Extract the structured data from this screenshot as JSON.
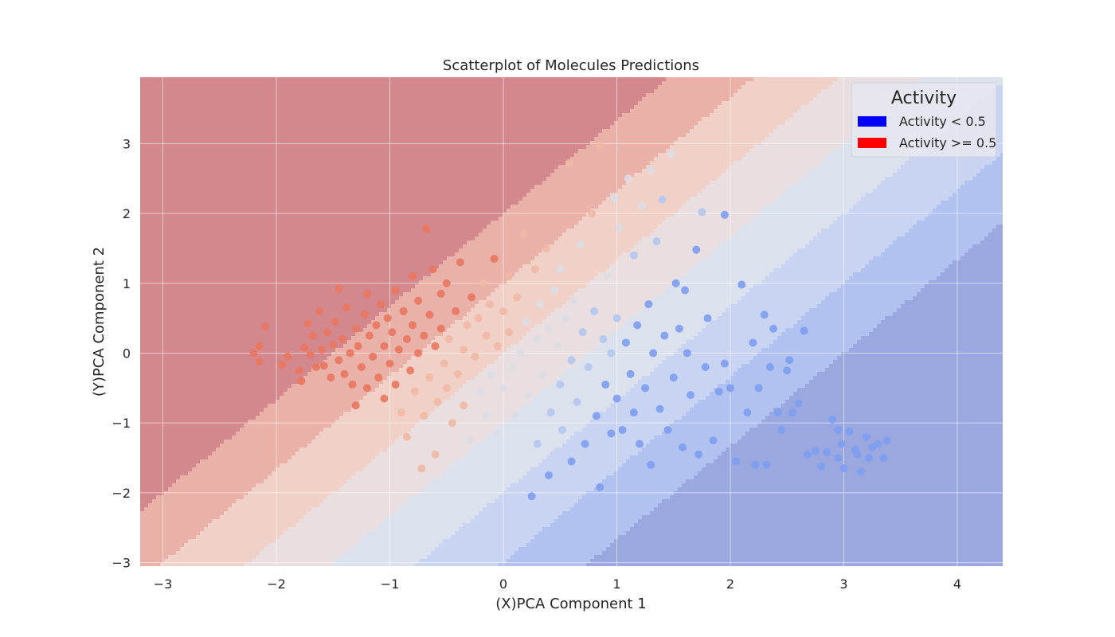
{
  "chart_data": {
    "type": "scatter",
    "title": "Scatterplot of Molecules Predictions",
    "xlabel": "(X)PCA Component 1",
    "ylabel": "(Y)PCA Component 2",
    "xlim": [
      -3.2,
      4.4
    ],
    "ylim": [
      -3.05,
      3.95
    ],
    "xticks": [
      -3,
      -2,
      -1,
      0,
      1,
      2,
      3,
      4
    ],
    "yticks": [
      -3,
      -2,
      -1,
      0,
      1,
      2,
      3
    ],
    "xtick_labels": [
      "−3",
      "−2",
      "−1",
      "0",
      "1",
      "2",
      "3",
      "4"
    ],
    "ytick_labels": [
      "−3",
      "−2",
      "−1",
      "0",
      "1",
      "2",
      "3"
    ],
    "grid": true,
    "background": "decision-contour",
    "contour_levels": [
      {
        "offset_max": -4.0,
        "color": "#d3888d"
      },
      {
        "offset_max": -2.5,
        "color": "#e9b1a7"
      },
      {
        "offset_max": -1.0,
        "color": "#f1d0c7"
      },
      {
        "offset_max": 0.5,
        "color": "#e9dfe0"
      },
      {
        "offset_max": 2.0,
        "color": "#dce1ee"
      },
      {
        "offset_max": 3.5,
        "color": "#c8d4f2"
      },
      {
        "offset_max": 5.0,
        "color": "#b1c2f0"
      },
      {
        "offset_max": 99,
        "color": "#9ba8e0"
      }
    ],
    "legend": {
      "title": "Activity",
      "placement": "top-right",
      "entries": [
        {
          "label": "Activity < 0.5",
          "color": "#0000ff"
        },
        {
          "label": "Activity >= 0.5",
          "color": "#ff0000"
        }
      ]
    },
    "point_colors": {
      "high_activity": "#e8775f",
      "mid_high": "#f0b8a4",
      "mid": "#dcdde3",
      "mid_low": "#b4c6f0",
      "low_activity": "#7d9df0"
    },
    "points": [
      [
        -2.2,
        0.0
      ],
      [
        -2.15,
        0.1
      ],
      [
        -2.15,
        -0.12
      ],
      [
        -2.1,
        0.38
      ],
      [
        -1.95,
        -0.17
      ],
      [
        -1.9,
        -0.05
      ],
      [
        -1.8,
        -0.25
      ],
      [
        -1.78,
        -0.4
      ],
      [
        -1.75,
        0.08
      ],
      [
        -1.72,
        0.42
      ],
      [
        -1.7,
        -0.02
      ],
      [
        -1.68,
        0.25
      ],
      [
        -1.65,
        -0.2
      ],
      [
        -1.62,
        0.6
      ],
      [
        -1.6,
        0.05
      ],
      [
        -1.58,
        -0.18
      ],
      [
        -1.55,
        0.3
      ],
      [
        -1.52,
        -0.35
      ],
      [
        -1.5,
        0.12
      ],
      [
        -1.48,
        0.45
      ],
      [
        -1.45,
        0.92
      ],
      [
        -1.45,
        -0.1
      ],
      [
        -1.42,
        0.2
      ],
      [
        -1.4,
        -0.3
      ],
      [
        -1.38,
        0.65
      ],
      [
        -1.35,
        0.0
      ],
      [
        -1.33,
        -0.45
      ],
      [
        -1.3,
        0.35
      ],
      [
        -1.3,
        -0.75
      ],
      [
        -1.28,
        0.1
      ],
      [
        -1.25,
        -0.2
      ],
      [
        -1.22,
        0.55
      ],
      [
        -1.2,
        0.85
      ],
      [
        -1.2,
        -0.5
      ],
      [
        -1.18,
        0.25
      ],
      [
        -1.15,
        -0.05
      ],
      [
        -1.12,
        0.4
      ],
      [
        -1.1,
        -0.35
      ],
      [
        -1.08,
        0.7
      ],
      [
        -1.05,
        0.1
      ],
      [
        -1.05,
        -0.65
      ],
      [
        -1.02,
        0.5
      ],
      [
        -1.0,
        -0.15
      ],
      [
        -0.98,
        0.3
      ],
      [
        -0.95,
        0.9
      ],
      [
        -0.95,
        -0.45
      ],
      [
        -0.92,
        0.05
      ],
      [
        -0.9,
        -0.85
      ],
      [
        -0.88,
        0.6
      ],
      [
        -0.85,
        0.2
      ],
      [
        -0.85,
        -1.2
      ],
      [
        -0.82,
        -0.25
      ],
      [
        -0.8,
        1.1
      ],
      [
        -0.8,
        0.4
      ],
      [
        -0.78,
        -0.55
      ],
      [
        -0.75,
        0.75
      ],
      [
        -0.75,
        0.0
      ],
      [
        -0.72,
        -1.65
      ],
      [
        -0.7,
        0.25
      ],
      [
        -0.7,
        -0.9
      ],
      [
        -0.68,
        1.78
      ],
      [
        -0.65,
        0.55
      ],
      [
        -0.65,
        -0.35
      ],
      [
        -0.62,
        1.2
      ],
      [
        -0.6,
        0.1
      ],
      [
        -0.6,
        -1.45
      ],
      [
        -0.58,
        -0.7
      ],
      [
        -0.55,
        0.85
      ],
      [
        -0.55,
        0.35
      ],
      [
        -0.52,
        -0.15
      ],
      [
        -0.5,
        1.0
      ],
      [
        -0.5,
        -0.5
      ],
      [
        -0.48,
        0.2
      ],
      [
        -0.45,
        -1.0
      ],
      [
        -0.42,
        0.6
      ],
      [
        -0.4,
        -0.3
      ],
      [
        -0.38,
        1.3
      ],
      [
        -0.35,
        0.05
      ],
      [
        -0.35,
        -0.75
      ],
      [
        -0.32,
        0.4
      ],
      [
        -0.3,
        -1.25
      ],
      [
        -0.28,
        0.8
      ],
      [
        -0.25,
        -0.05
      ],
      [
        -0.22,
        0.5
      ],
      [
        -0.2,
        -0.55
      ],
      [
        -0.18,
        1.0
      ],
      [
        -0.15,
        0.25
      ],
      [
        -0.15,
        -0.9
      ],
      [
        -0.12,
        0.7
      ],
      [
        -0.1,
        -0.3
      ],
      [
        -0.08,
        1.35
      ],
      [
        -0.05,
        0.1
      ],
      [
        -0.05,
        -1.15
      ],
      [
        0.0,
        0.6
      ],
      [
        0.0,
        -0.5
      ],
      [
        0.05,
        1.1
      ],
      [
        0.05,
        0.3
      ],
      [
        0.08,
        -0.2
      ],
      [
        0.1,
        -0.9
      ],
      [
        0.12,
        0.8
      ],
      [
        0.15,
        0.0
      ],
      [
        0.18,
        1.7
      ],
      [
        0.2,
        0.45
      ],
      [
        0.22,
        -0.6
      ],
      [
        0.25,
        -2.05
      ],
      [
        0.28,
        1.2
      ],
      [
        0.3,
        0.2
      ],
      [
        0.3,
        -1.3
      ],
      [
        0.32,
        0.7
      ],
      [
        0.35,
        -0.3
      ],
      [
        0.38,
        1.5
      ],
      [
        0.4,
        0.35
      ],
      [
        0.4,
        -1.75
      ],
      [
        0.42,
        -0.85
      ],
      [
        0.45,
        0.9
      ],
      [
        0.48,
        0.1
      ],
      [
        0.5,
        -0.45
      ],
      [
        0.5,
        1.2
      ],
      [
        0.52,
        -1.1
      ],
      [
        0.55,
        0.5
      ],
      [
        0.58,
        2.72
      ],
      [
        0.6,
        -0.1
      ],
      [
        0.6,
        -1.55
      ],
      [
        0.62,
        0.75
      ],
      [
        0.65,
        -0.7
      ],
      [
        0.68,
        1.55
      ],
      [
        0.7,
        0.3
      ],
      [
        0.72,
        -1.3
      ],
      [
        0.75,
        -0.2
      ],
      [
        0.78,
        2.0
      ],
      [
        0.8,
        0.6
      ],
      [
        0.82,
        -0.9
      ],
      [
        0.85,
        2.98
      ],
      [
        0.85,
        -1.92
      ],
      [
        0.88,
        0.2
      ],
      [
        0.9,
        -0.45
      ],
      [
        0.92,
        1.1
      ],
      [
        0.95,
        -1.15
      ],
      [
        0.95,
        0.0
      ],
      [
        0.98,
        2.22
      ],
      [
        1.0,
        0.5
      ],
      [
        1.0,
        -0.65
      ],
      [
        1.02,
        1.8
      ],
      [
        1.05,
        -1.1
      ],
      [
        1.08,
        0.15
      ],
      [
        1.1,
        2.5
      ],
      [
        1.12,
        -0.3
      ],
      [
        1.15,
        1.4
      ],
      [
        1.15,
        -0.85
      ],
      [
        1.18,
        0.4
      ],
      [
        1.2,
        -1.3
      ],
      [
        1.22,
        2.1
      ],
      [
        1.25,
        -0.5
      ],
      [
        1.28,
        0.7
      ],
      [
        1.3,
        -1.6
      ],
      [
        1.3,
        2.62
      ],
      [
        1.32,
        0.0
      ],
      [
        1.35,
        1.6
      ],
      [
        1.38,
        -0.8
      ],
      [
        1.4,
        2.2
      ],
      [
        1.42,
        0.25
      ],
      [
        1.45,
        -1.1
      ],
      [
        1.48,
        2.85
      ],
      [
        1.5,
        -0.35
      ],
      [
        1.52,
        1.0
      ],
      [
        1.55,
        0.35
      ],
      [
        1.58,
        -1.35
      ],
      [
        1.6,
        0.9
      ],
      [
        1.62,
        0.0
      ],
      [
        1.65,
        -0.6
      ],
      [
        1.7,
        1.48
      ],
      [
        1.72,
        -1.45
      ],
      [
        1.75,
        2.02
      ],
      [
        1.78,
        -0.2
      ],
      [
        1.8,
        0.5
      ],
      [
        1.85,
        -1.25
      ],
      [
        1.9,
        -0.55
      ],
      [
        1.95,
        1.98
      ],
      [
        1.95,
        -0.15
      ],
      [
        2.0,
        -0.5
      ],
      [
        2.05,
        -1.55
      ],
      [
        2.1,
        0.98
      ],
      [
        2.15,
        -0.85
      ],
      [
        2.2,
        0.15
      ],
      [
        2.22,
        -1.6
      ],
      [
        2.25,
        -0.5
      ],
      [
        2.3,
        0.55
      ],
      [
        2.32,
        -1.6
      ],
      [
        2.35,
        -0.2
      ],
      [
        2.38,
        0.35
      ],
      [
        2.42,
        -0.85
      ],
      [
        2.45,
        -1.1
      ],
      [
        2.5,
        -0.25
      ],
      [
        2.52,
        -0.1
      ],
      [
        2.55,
        -0.85
      ],
      [
        2.6,
        -0.72
      ],
      [
        2.65,
        0.32
      ],
      [
        2.68,
        -1.45
      ],
      [
        2.75,
        -1.4
      ],
      [
        2.8,
        -1.62
      ],
      [
        2.85,
        -1.42
      ],
      [
        2.9,
        -0.95
      ],
      [
        2.95,
        -1.1
      ],
      [
        2.95,
        -1.5
      ],
      [
        2.98,
        -1.3
      ],
      [
        3.0,
        -1.65
      ],
      [
        3.05,
        -1.12
      ],
      [
        3.1,
        -1.38
      ],
      [
        3.12,
        -1.45
      ],
      [
        3.15,
        -1.7
      ],
      [
        3.2,
        -1.2
      ],
      [
        3.22,
        -1.5
      ],
      [
        3.25,
        -1.35
      ],
      [
        3.3,
        -1.3
      ],
      [
        3.35,
        -1.5
      ],
      [
        3.38,
        -1.25
      ]
    ]
  }
}
